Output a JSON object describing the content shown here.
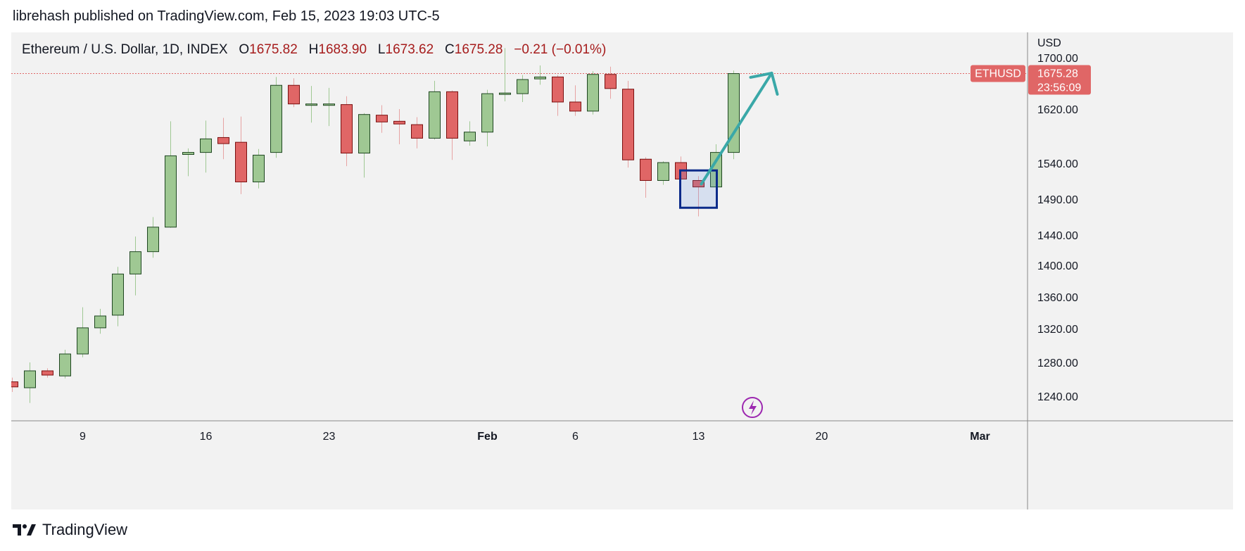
{
  "header": {
    "published": "librehash published on TradingView.com, Feb 15, 2023 19:03 UTC-5"
  },
  "legend": {
    "title": "Ethereum / U.S. Dollar, 1D, INDEX",
    "o_label": "O",
    "o_value": "1675.82",
    "h_label": "H",
    "h_value": "1683.90",
    "l_label": "L",
    "l_value": "1673.62",
    "c_label": "C",
    "c_value": "1675.28",
    "change": "−0.21 (−0.01%)"
  },
  "price_axis": {
    "currency": "USD",
    "last_price_label": "1675.28",
    "countdown": "23:56:09",
    "symbol_tag": "ETHUSD",
    "tick_labels": [
      "1700.00",
      "1620.00",
      "1540.00",
      "1490.00",
      "1440.00",
      "1400.00",
      "1360.00",
      "1320.00",
      "1280.00",
      "1240.00"
    ]
  },
  "footer": {
    "brand": "TradingView"
  },
  "colors": {
    "up": "#9fc893",
    "down": "#e06666",
    "up_border": "#1e4620",
    "down_border": "#7a0f0f",
    "arrow": "#3aa8a8",
    "box": "#0a2a8a",
    "lightning": "#9c27b0"
  },
  "chart_data": {
    "type": "candlestick",
    "symbol": "ETHUSD",
    "interval": "1D",
    "ylim": [
      1200,
      1715
    ],
    "x_tick_labels": [
      {
        "label": "9",
        "date": "2023-01-09"
      },
      {
        "label": "16",
        "date": "2023-01-16"
      },
      {
        "label": "23",
        "date": "2023-01-23"
      },
      {
        "label": "Feb",
        "date": "2023-02-01"
      },
      {
        "label": "6",
        "date": "2023-02-06"
      },
      {
        "label": "13",
        "date": "2023-02-13"
      },
      {
        "label": "20",
        "date": "2023-02-20"
      },
      {
        "label": "Mar",
        "date": "2023-03-01"
      }
    ],
    "candles": [
      {
        "date": "2023-01-05",
        "o": 1257,
        "h": 1262,
        "l": 1245,
        "c": 1251
      },
      {
        "date": "2023-01-06",
        "o": 1250,
        "h": 1280,
        "l": 1232,
        "c": 1270
      },
      {
        "date": "2023-01-07",
        "o": 1270,
        "h": 1273,
        "l": 1262,
        "c": 1265
      },
      {
        "date": "2023-01-08",
        "o": 1264,
        "h": 1295,
        "l": 1261,
        "c": 1290
      },
      {
        "date": "2023-01-09",
        "o": 1290,
        "h": 1347,
        "l": 1286,
        "c": 1321
      },
      {
        "date": "2023-01-10",
        "o": 1321,
        "h": 1345,
        "l": 1314,
        "c": 1336
      },
      {
        "date": "2023-01-11",
        "o": 1337,
        "h": 1398,
        "l": 1323,
        "c": 1389
      },
      {
        "date": "2023-01-12",
        "o": 1389,
        "h": 1438,
        "l": 1362,
        "c": 1418
      },
      {
        "date": "2023-01-13",
        "o": 1418,
        "h": 1465,
        "l": 1410,
        "c": 1451
      },
      {
        "date": "2023-01-14",
        "o": 1451,
        "h": 1602,
        "l": 1450,
        "c": 1551
      },
      {
        "date": "2023-01-15",
        "o": 1553,
        "h": 1562,
        "l": 1522,
        "c": 1556
      },
      {
        "date": "2023-01-16",
        "o": 1556,
        "h": 1603,
        "l": 1527,
        "c": 1576
      },
      {
        "date": "2023-01-17",
        "o": 1578,
        "h": 1607,
        "l": 1546,
        "c": 1569
      },
      {
        "date": "2023-01-18",
        "o": 1571,
        "h": 1609,
        "l": 1497,
        "c": 1514
      },
      {
        "date": "2023-01-19",
        "o": 1514,
        "h": 1561,
        "l": 1505,
        "c": 1552
      },
      {
        "date": "2023-01-20",
        "o": 1556,
        "h": 1670,
        "l": 1548,
        "c": 1657
      },
      {
        "date": "2023-01-21",
        "o": 1657,
        "h": 1668,
        "l": 1623,
        "c": 1628
      },
      {
        "date": "2023-01-22",
        "o": 1628,
        "h": 1656,
        "l": 1600,
        "c": 1628
      },
      {
        "date": "2023-01-23",
        "o": 1628,
        "h": 1653,
        "l": 1595,
        "c": 1628
      },
      {
        "date": "2023-01-24",
        "o": 1627,
        "h": 1640,
        "l": 1536,
        "c": 1555
      },
      {
        "date": "2023-01-25",
        "o": 1555,
        "h": 1614,
        "l": 1520,
        "c": 1612
      },
      {
        "date": "2023-01-26",
        "o": 1611,
        "h": 1626,
        "l": 1585,
        "c": 1601
      },
      {
        "date": "2023-01-27",
        "o": 1602,
        "h": 1620,
        "l": 1568,
        "c": 1598
      },
      {
        "date": "2023-01-28",
        "o": 1597,
        "h": 1608,
        "l": 1562,
        "c": 1577
      },
      {
        "date": "2023-01-29",
        "o": 1577,
        "h": 1664,
        "l": 1575,
        "c": 1647
      },
      {
        "date": "2023-01-30",
        "o": 1647,
        "h": 1649,
        "l": 1545,
        "c": 1577
      },
      {
        "date": "2023-01-31",
        "o": 1573,
        "h": 1602,
        "l": 1566,
        "c": 1586
      },
      {
        "date": "2023-02-01",
        "o": 1586,
        "h": 1650,
        "l": 1565,
        "c": 1644
      },
      {
        "date": "2023-02-02",
        "o": 1644,
        "h": 1715,
        "l": 1632,
        "c": 1645
      },
      {
        "date": "2023-02-03",
        "o": 1644,
        "h": 1673,
        "l": 1631,
        "c": 1666
      },
      {
        "date": "2023-02-04",
        "o": 1667,
        "h": 1688,
        "l": 1658,
        "c": 1670
      },
      {
        "date": "2023-02-05",
        "o": 1670,
        "h": 1673,
        "l": 1610,
        "c": 1631
      },
      {
        "date": "2023-02-06",
        "o": 1631,
        "h": 1657,
        "l": 1610,
        "c": 1617
      },
      {
        "date": "2023-02-07",
        "o": 1617,
        "h": 1679,
        "l": 1612,
        "c": 1674
      },
      {
        "date": "2023-02-08",
        "o": 1674,
        "h": 1686,
        "l": 1636,
        "c": 1652
      },
      {
        "date": "2023-02-09",
        "o": 1651,
        "h": 1664,
        "l": 1534,
        "c": 1545
      },
      {
        "date": "2023-02-10",
        "o": 1546,
        "h": 1549,
        "l": 1492,
        "c": 1516
      },
      {
        "date": "2023-02-11",
        "o": 1516,
        "h": 1543,
        "l": 1510,
        "c": 1541
      },
      {
        "date": "2023-02-12",
        "o": 1541,
        "h": 1550,
        "l": 1512,
        "c": 1518
      },
      {
        "date": "2023-02-13",
        "o": 1516,
        "h": 1522,
        "l": 1466,
        "c": 1507
      },
      {
        "date": "2023-02-14",
        "o": 1507,
        "h": 1568,
        "l": 1506,
        "c": 1556
      },
      {
        "date": "2023-02-15",
        "o": 1556,
        "h": 1680,
        "l": 1546,
        "c": 1675.28
      }
    ],
    "annotations": [
      {
        "type": "rectangle",
        "from_date": "2023-02-12",
        "to_date": "2023-02-13",
        "top": 1530,
        "bottom": 1478
      },
      {
        "type": "arrow",
        "from": {
          "date": "2023-02-13",
          "price": 1511
        },
        "to": {
          "date": "2023-02-17",
          "price": 1676
        }
      },
      {
        "type": "price-line",
        "price": 1675.28
      }
    ]
  }
}
